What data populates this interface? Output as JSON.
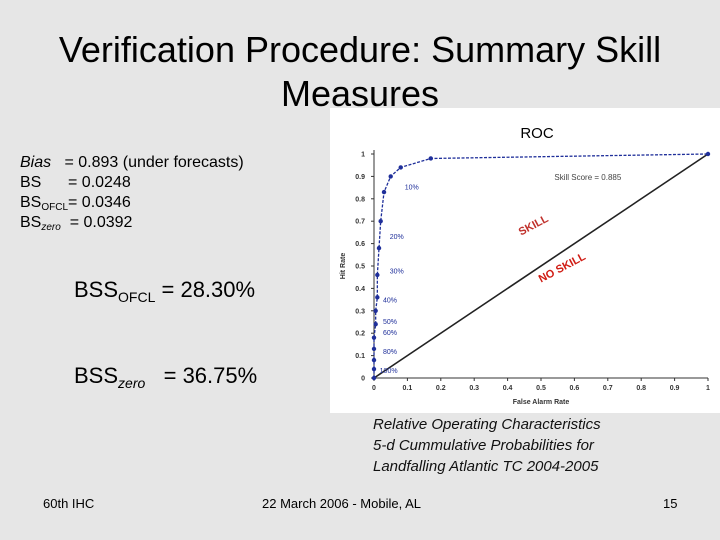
{
  "slide": {
    "title": "Verification Procedure:  Summary Skill Measures",
    "stats": [
      {
        "label": "Bias",
        "sub": "",
        "value": "= 0.893  (under forecasts)"
      },
      {
        "label": "BS",
        "sub": "",
        "value": "= 0.0248"
      },
      {
        "label": "BS",
        "sub": "OFCL",
        "value": "= 0.0346"
      },
      {
        "label": "BS",
        "sub": "zero",
        "value": "= 0.0392"
      }
    ],
    "bss_ofcl": {
      "label": "BSS",
      "sub": "OFCL",
      "value": "= 28.30%"
    },
    "bss_zero": {
      "label": "BSS",
      "sub": "zero",
      "value": "= 36.75%"
    },
    "caption": [
      "Relative Operating Characteristics",
      "5-d Cummulative Probabilities for",
      "Landfalling Atlantic TC 2004-2005"
    ],
    "footer": {
      "left": "60th IHC",
      "center": "22 March 2006  -  Mobile, AL",
      "right": "15"
    }
  },
  "chart_data": {
    "type": "line",
    "title": "ROC",
    "xlabel": "False Alarm Rate",
    "ylabel": "Hit Rate",
    "xlim": [
      0,
      1
    ],
    "ylim": [
      0,
      1
    ],
    "x_ticks": [
      "0",
      "0.1",
      "0.2",
      "0.3",
      "0.4",
      "0.5",
      "0.6",
      "0.7",
      "0.8",
      "0.9",
      "1"
    ],
    "y_ticks": [
      "0",
      "0.1",
      "0.2",
      "0.3",
      "0.4",
      "0.5",
      "0.6",
      "0.7",
      "0.8",
      "0.9",
      "1"
    ],
    "series": [
      {
        "values_x": [
          0,
          0,
          0,
          0,
          0,
          0.005,
          0.005,
          0.01,
          0.01,
          0.015,
          0.02,
          0.03,
          0.05,
          0.08,
          0.17,
          1.0
        ],
        "values_y": [
          0,
          0.04,
          0.08,
          0.13,
          0.18,
          0.24,
          0.3,
          0.36,
          0.46,
          0.58,
          0.7,
          0.83,
          0.9,
          0.94,
          0.98,
          1.0
        ],
        "color": "#1f2f9a"
      }
    ],
    "diagonal": {
      "from": [
        0,
        0
      ],
      "to": [
        1,
        1
      ]
    },
    "annotations": [
      {
        "text": "Skill Score = 0.885",
        "x": 0.54,
        "y": 0.885,
        "color": "#444444"
      },
      {
        "text": "SKILL",
        "x": 0.44,
        "y": 0.635,
        "color": "#c0302b",
        "rotated": true
      },
      {
        "text": "NO SKILL",
        "x": 0.5,
        "y": 0.425,
        "color": "#d01a12",
        "rotated": true
      }
    ],
    "point_labels": [
      {
        "text": "10%",
        "x": 0.08,
        "y": 0.855
      },
      {
        "text": "20%",
        "x": 0.035,
        "y": 0.635
      },
      {
        "text": "30%",
        "x": 0.035,
        "y": 0.48
      },
      {
        "text": "40%",
        "x": 0.015,
        "y": 0.35
      },
      {
        "text": "50%",
        "x": 0.015,
        "y": 0.255
      },
      {
        "text": "60%",
        "x": 0.015,
        "y": 0.205
      },
      {
        "text": "80%",
        "x": 0.015,
        "y": 0.12
      },
      {
        "text": "100%",
        "x": 0.005,
        "y": 0.035
      }
    ],
    "grid": false
  }
}
